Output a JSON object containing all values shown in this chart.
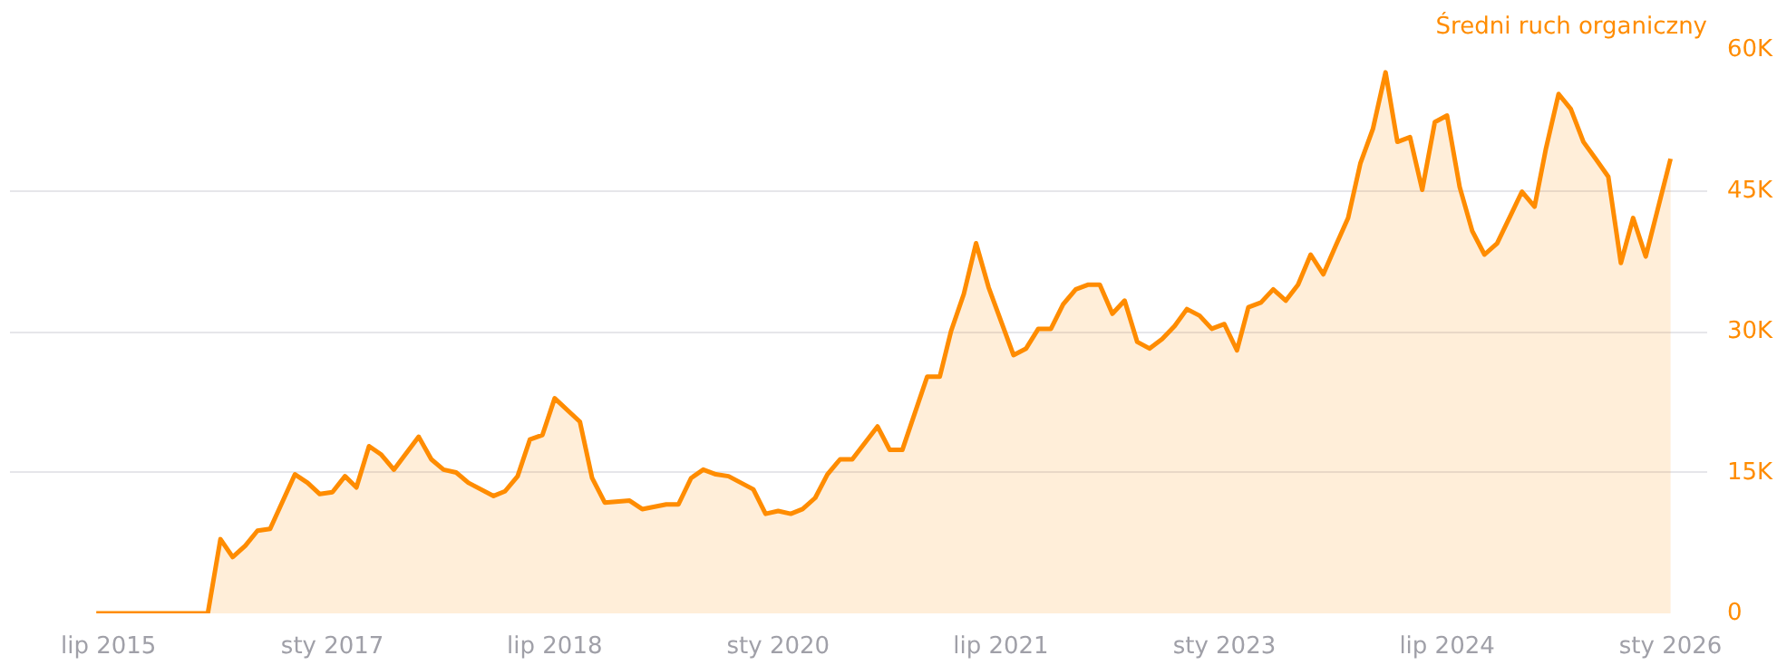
{
  "chart_data": {
    "type": "area",
    "title": "Średni ruch organiczny",
    "x": [
      "2015-06",
      "2016-03",
      "2016-04",
      "2016-05",
      "2016-06",
      "2016-07",
      "2016-08",
      "2016-10",
      "2016-11",
      "2016-12",
      "2017-01",
      "2017-02",
      "2017-03",
      "2017-04",
      "2017-05",
      "2017-06",
      "2017-08",
      "2017-09",
      "2017-10",
      "2017-11",
      "2017-12",
      "2018-02",
      "2018-03",
      "2018-04",
      "2018-05",
      "2018-06",
      "2018-07",
      "2018-09",
      "2018-10",
      "2018-11",
      "2019-01",
      "2019-02",
      "2019-04",
      "2019-05",
      "2019-06",
      "2019-07",
      "2019-08",
      "2019-09",
      "2019-11",
      "2019-12",
      "2020-01",
      "2020-02",
      "2020-03",
      "2020-04",
      "2020-05",
      "2020-06",
      "2020-07",
      "2020-09",
      "2020-10",
      "2020-11",
      "2021-01",
      "2021-02",
      "2021-03",
      "2021-04",
      "2021-05",
      "2021-06",
      "2021-08",
      "2021-09",
      "2021-10",
      "2021-11",
      "2021-12",
      "2022-01",
      "2022-02",
      "2022-03",
      "2022-04",
      "2022-05",
      "2022-06",
      "2022-07",
      "2022-08",
      "2022-09",
      "2022-10",
      "2022-11",
      "2022-12",
      "2023-01",
      "2023-02",
      "2023-03",
      "2023-04",
      "2023-05",
      "2023-06",
      "2023-07",
      "2023-08",
      "2023-09",
      "2023-10",
      "2023-11",
      "2023-12",
      "2024-01",
      "2024-02",
      "2024-03",
      "2024-04",
      "2024-05",
      "2024-06",
      "2024-07",
      "2024-08",
      "2024-09",
      "2024-10",
      "2024-11",
      "2024-12",
      "2025-01",
      "2025-02",
      "2025-03",
      "2025-04",
      "2025-05",
      "2025-06",
      "2025-07",
      "2025-08",
      "2025-09",
      "2025-10",
      "2025-11",
      "2026-01"
    ],
    "series": [
      {
        "color": "#ff8c00",
        "values": [
          0,
          0,
          7900,
          6000,
          7200,
          8800,
          9000,
          14800,
          13900,
          12700,
          12900,
          14600,
          13400,
          17800,
          16900,
          15300,
          18800,
          16400,
          15300,
          15000,
          13900,
          12500,
          13000,
          14600,
          18500,
          19000,
          22900,
          20400,
          14400,
          11800,
          12000,
          11100,
          11600,
          11600,
          14400,
          15300,
          14800,
          14600,
          13200,
          10600,
          10900,
          10600,
          11100,
          12300,
          14800,
          16400,
          16400,
          19900,
          17400,
          17400,
          25200,
          25200,
          30100,
          34000,
          39400,
          34700,
          27500,
          28200,
          30300,
          30300,
          32900,
          34500,
          35000,
          35000,
          31900,
          33300,
          28900,
          28200,
          29200,
          30600,
          32400,
          31700,
          30300,
          30800,
          28000,
          32600,
          33100,
          34500,
          33300,
          35000,
          38200,
          36100,
          39100,
          42100,
          47900,
          51600,
          57600,
          50200,
          50700,
          45100,
          52300,
          53000,
          45400,
          40700,
          38200,
          39400,
          42100,
          44900,
          43300,
          49500,
          55300,
          53700,
          50200,
          48400,
          46500,
          37300,
          42100,
          38000,
          48400
        ]
      }
    ],
    "xlim": [
      "2014-11",
      "2026-04"
    ],
    "xticks": [
      {
        "value": "2015-07",
        "label": "lip 2015"
      },
      {
        "value": "2017-01",
        "label": "sty 2017"
      },
      {
        "value": "2018-07",
        "label": "lip 2018"
      },
      {
        "value": "2020-01",
        "label": "sty 2020"
      },
      {
        "value": "2021-07",
        "label": "lip 2021"
      },
      {
        "value": "2023-01",
        "label": "sty 2023"
      },
      {
        "value": "2024-07",
        "label": "lip 2024"
      },
      {
        "value": "2026-01",
        "label": "sty 2026"
      }
    ],
    "ylim": [
      0,
      60000
    ],
    "yticks": [
      {
        "value": 0,
        "label": "0"
      },
      {
        "value": 15000,
        "label": "15K"
      },
      {
        "value": 30000,
        "label": "30K"
      },
      {
        "value": 45000,
        "label": "45K"
      },
      {
        "value": 60000,
        "label": "60K"
      }
    ],
    "grid": "y"
  }
}
